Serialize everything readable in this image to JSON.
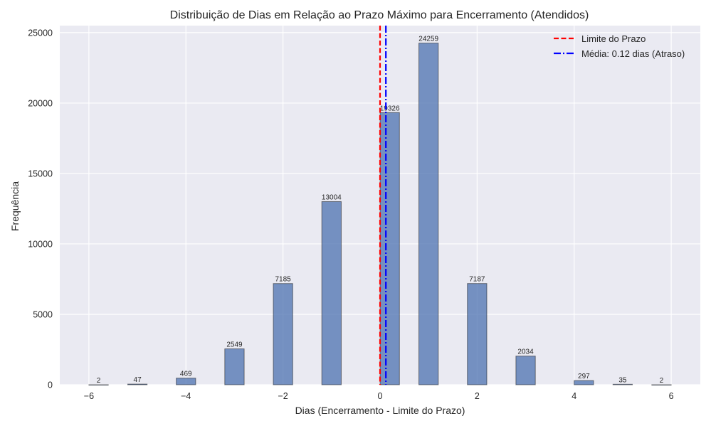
{
  "chart_data": {
    "type": "bar",
    "title": "Distribuição de Dias em Relação ao Prazo Máximo para Encerramento (Atendidos)",
    "xlabel": "Dias (Encerramento - Limite do Prazo)",
    "ylabel": "Frequência",
    "xlim": [
      -6.6,
      6.6
    ],
    "ylim": [
      0,
      25500
    ],
    "xticks": [
      -6,
      -4,
      -2,
      0,
      2,
      4,
      6
    ],
    "xtick_labels": [
      "−6",
      "−4",
      "−2",
      "0",
      "2",
      "4",
      "6"
    ],
    "yticks": [
      0,
      5000,
      10000,
      15000,
      20000,
      25000
    ],
    "ytick_labels": [
      "0",
      "5000",
      "10000",
      "15000",
      "20000",
      "25000"
    ],
    "bar_width": 0.4,
    "bars": [
      {
        "x": -5.8,
        "value": 2,
        "label": "2"
      },
      {
        "x": -5.0,
        "value": 47,
        "label": "47"
      },
      {
        "x": -4.0,
        "value": 469,
        "label": "469"
      },
      {
        "x": -3.0,
        "value": 2549,
        "label": "2549"
      },
      {
        "x": -2.0,
        "value": 7185,
        "label": "7185"
      },
      {
        "x": -1.0,
        "value": 13004,
        "label": "13004"
      },
      {
        "x": 0.2,
        "value": 19326,
        "label": "19326"
      },
      {
        "x": 1.0,
        "value": 24259,
        "label": "24259"
      },
      {
        "x": 2.0,
        "value": 7187,
        "label": "7187"
      },
      {
        "x": 3.0,
        "value": 2034,
        "label": "2034"
      },
      {
        "x": 4.2,
        "value": 297,
        "label": "297"
      },
      {
        "x": 5.0,
        "value": 35,
        "label": "35"
      },
      {
        "x": 5.8,
        "value": 2,
        "label": "2"
      }
    ],
    "vlines": [
      {
        "name": "Limite do Prazo",
        "x": 0,
        "color": "#ff0000",
        "style": "dashed"
      },
      {
        "name": "Média: 0.12 dias (Atraso)",
        "x": 0.12,
        "color": "#0000ff",
        "style": "dashdot"
      }
    ],
    "legend_position": "top-right",
    "grid": true,
    "colors": {
      "bar_fill": "#4c72b0",
      "bar_edge": "#1f1f1f",
      "plot_bg": "#eaeaf2",
      "grid": "#ffffff"
    }
  }
}
